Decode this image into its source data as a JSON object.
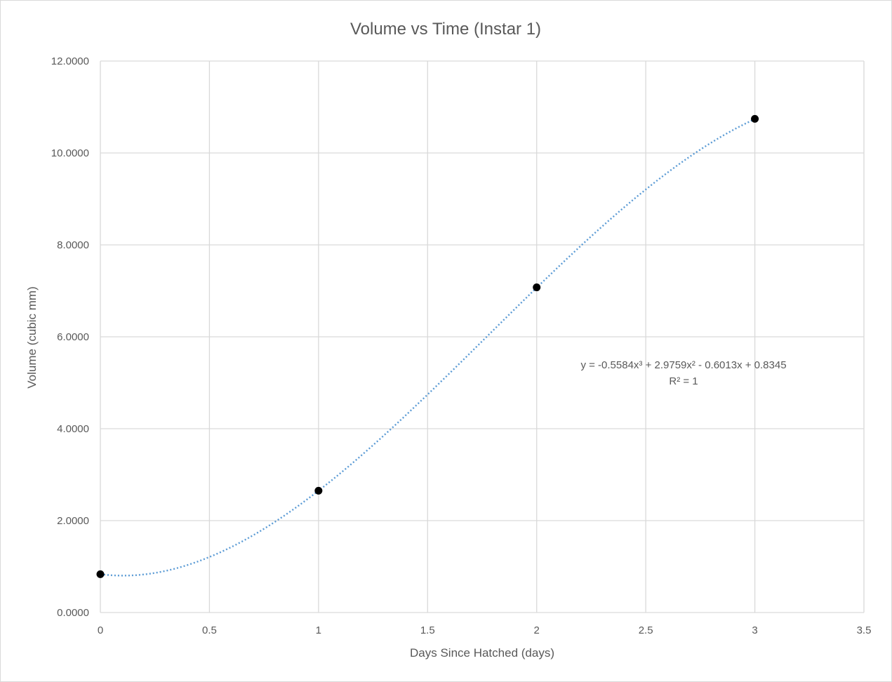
{
  "chart_data": {
    "type": "scatter",
    "title": "Volume vs Time (Instar 1)",
    "xlabel": "Days Since Hatched (days)",
    "ylabel": "Volume (cubic mm)",
    "xlim": [
      0,
      3.5
    ],
    "ylim": [
      0,
      12
    ],
    "x_ticks": [
      "0",
      "0.5",
      "1",
      "1.5",
      "2",
      "2.5",
      "3",
      "3.5"
    ],
    "x_tick_values": [
      0,
      0.5,
      1,
      1.5,
      2,
      2.5,
      3,
      3.5
    ],
    "y_ticks": [
      "0.0000",
      "2.0000",
      "4.0000",
      "6.0000",
      "8.0000",
      "10.0000",
      "12.0000"
    ],
    "y_tick_values": [
      0,
      2,
      4,
      6,
      8,
      10,
      12
    ],
    "grid": true,
    "legend": "none",
    "series": [
      {
        "x": [
          0,
          1,
          2,
          3
        ],
        "y": [
          0.8345,
          2.6507,
          7.0755,
          10.7425
        ],
        "marker_color": "#000000"
      }
    ],
    "trendline": {
      "type": "polynomial",
      "order": 3,
      "coefficients": [
        -0.5584,
        2.9759,
        -0.6013,
        0.8345
      ],
      "x_range": [
        0,
        3
      ],
      "color": "#5b9bd5",
      "style": "dotted"
    },
    "annotations": {
      "equation": "y = -0.5584x³ + 2.9759x² - 0.6013x + 0.8345",
      "r_squared": "R² = 1"
    }
  }
}
